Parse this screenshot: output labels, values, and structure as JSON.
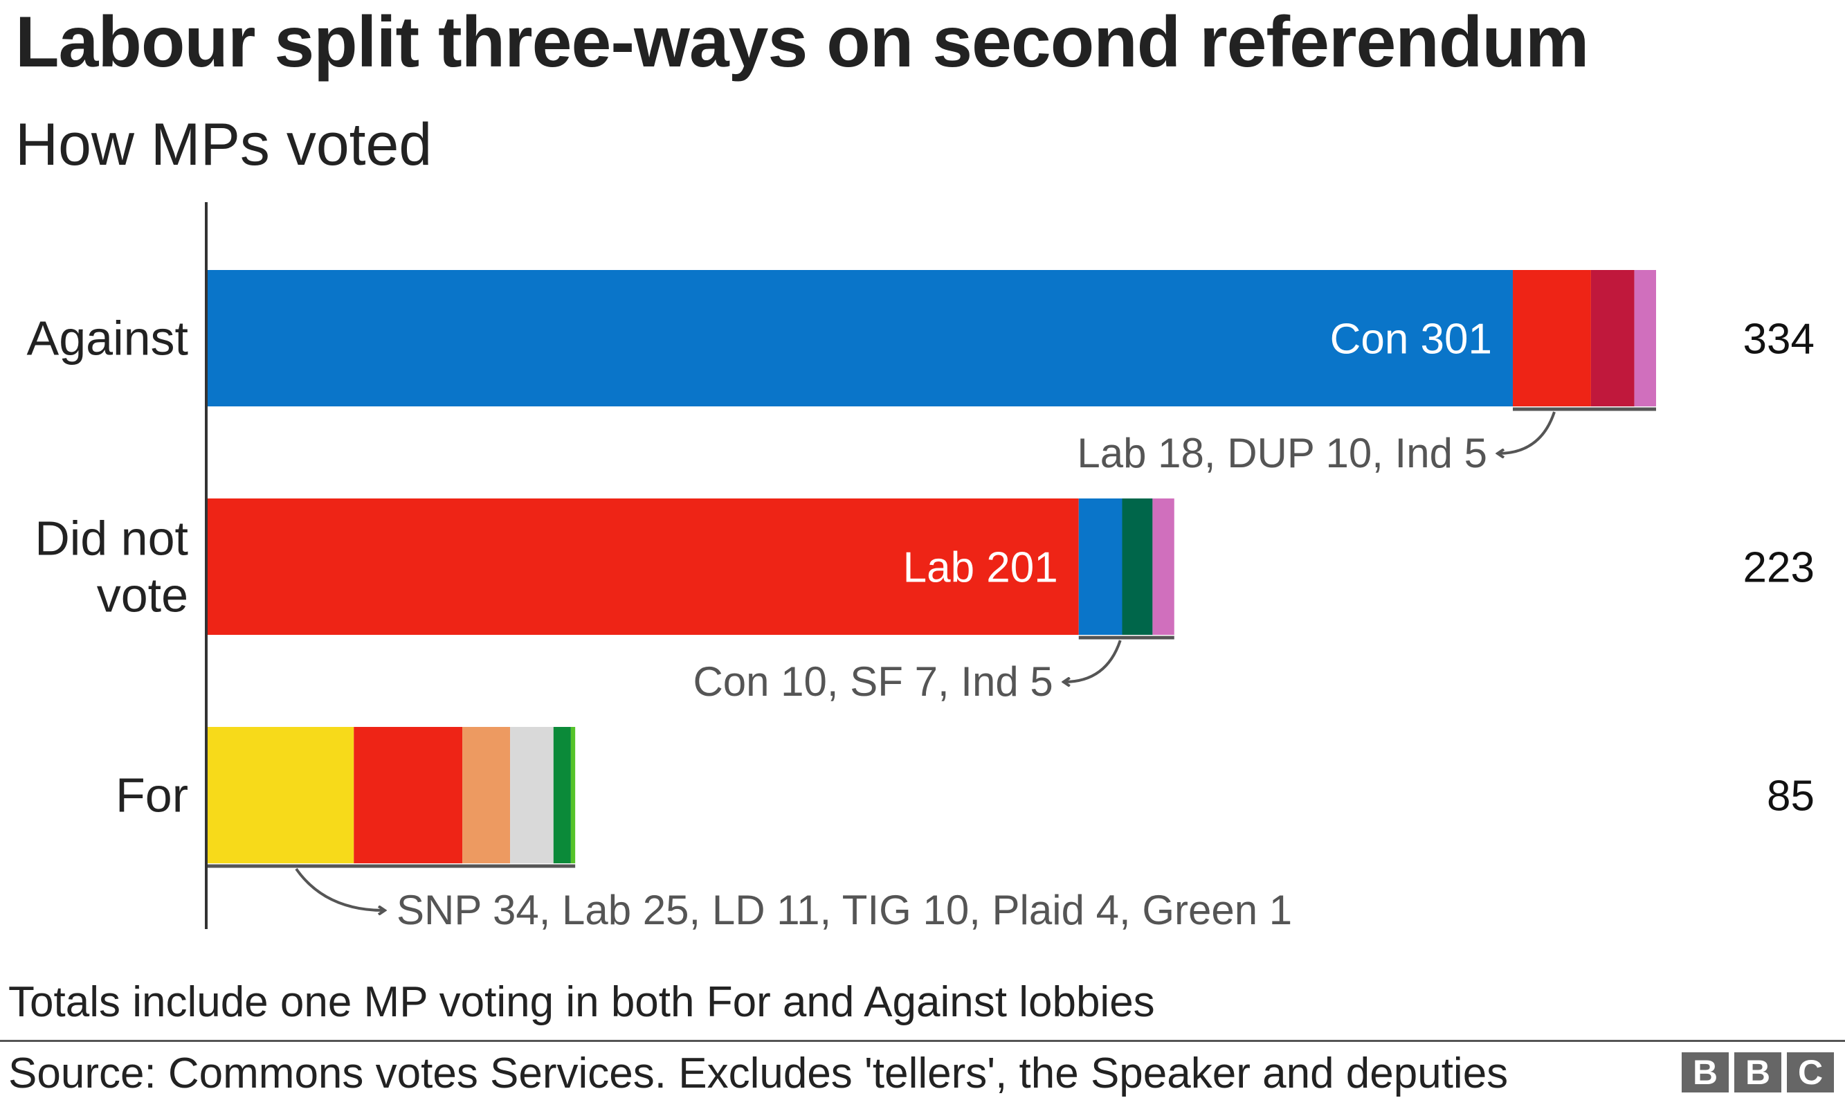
{
  "header": {
    "title": "Labour split three-ways on second referendum",
    "subtitle": "How MPs voted"
  },
  "chart_data": {
    "type": "bar",
    "orientation": "horizontal",
    "stacked": true,
    "categories": [
      {
        "name": "Against",
        "label_lines": [
          "Against"
        ],
        "total": 334,
        "segments": [
          {
            "party": "Con",
            "value": 301,
            "color": "#0a75c9",
            "label": "Con 301"
          },
          {
            "party": "Lab",
            "value": 18,
            "color": "#ee2416"
          },
          {
            "party": "DUP",
            "value": 10,
            "color": "#c0183c"
          },
          {
            "party": "Ind",
            "value": 5,
            "color": "#d06fbd"
          }
        ],
        "annotation": "Lab 18, DUP 10, Ind 5"
      },
      {
        "name": "Did not vote",
        "label_lines": [
          "Did not",
          "vote"
        ],
        "total": 223,
        "segments": [
          {
            "party": "Lab",
            "value": 201,
            "color": "#ee2416",
            "label": "Lab 201"
          },
          {
            "party": "Con",
            "value": 10,
            "color": "#0a75c9"
          },
          {
            "party": "SF",
            "value": 7,
            "color": "#00664a"
          },
          {
            "party": "Ind",
            "value": 5,
            "color": "#d06fbd"
          }
        ],
        "annotation": "Con 10, SF 7, Ind 5"
      },
      {
        "name": "For",
        "label_lines": [
          "For"
        ],
        "total": 85,
        "segments": [
          {
            "party": "SNP",
            "value": 34,
            "color": "#f7da1a"
          },
          {
            "party": "Lab",
            "value": 25,
            "color": "#ee2416"
          },
          {
            "party": "LD",
            "value": 11,
            "color": "#ed9a61"
          },
          {
            "party": "TIG",
            "value": 10,
            "color": "#d9d9d9"
          },
          {
            "party": "Plaid",
            "value": 4,
            "color": "#0b8a39"
          },
          {
            "party": "Green",
            "value": 1,
            "color": "#55c32a"
          }
        ],
        "annotation": "SNP 34, Lab 25, LD 11, TIG 10, Plaid 4, Green 1"
      }
    ],
    "xlim": [
      0,
      334
    ],
    "grid": false,
    "legend": "none"
  },
  "footer": {
    "footnote": "Totals include one MP voting in both For and Against lobbies",
    "source": "Source: Commons votes Services. Excludes 'tellers', the Speaker and deputies",
    "logo_letters": [
      "B",
      "B",
      "C"
    ]
  }
}
